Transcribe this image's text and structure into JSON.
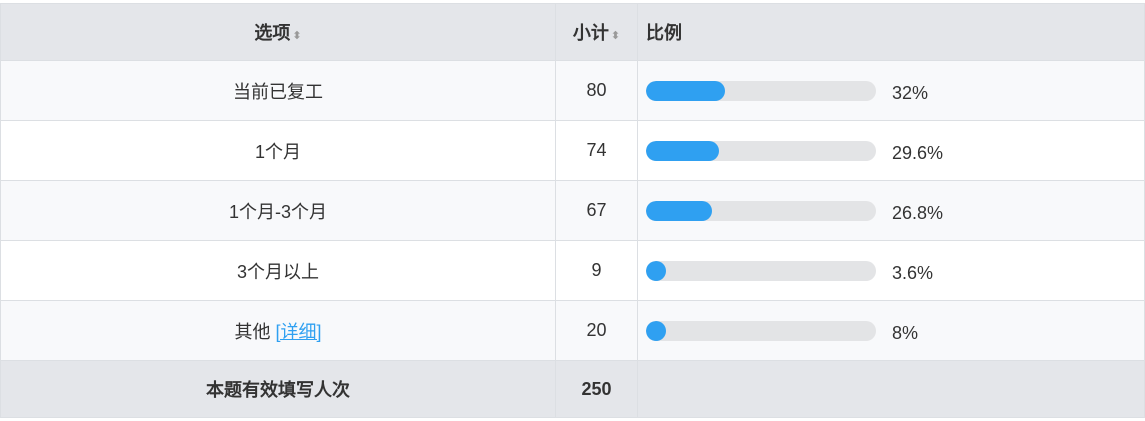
{
  "header": {
    "option": "选项",
    "count": "小计",
    "ratio": "比例"
  },
  "rows": [
    {
      "label": "当前已复工",
      "count": "80",
      "percent": "32%",
      "value": 32
    },
    {
      "label": "1个月",
      "count": "74",
      "percent": "29.6%",
      "value": 29.6
    },
    {
      "label": "1个月-3个月",
      "count": "67",
      "percent": "26.8%",
      "value": 26.8
    },
    {
      "label": "3个月以上",
      "count": "9",
      "percent": "3.6%",
      "value": 3.6
    },
    {
      "label": "其他",
      "link": "[详细]",
      "count": "20",
      "percent": "8%",
      "value": 8
    }
  ],
  "footer": {
    "label": "本题有效填写人次",
    "total": "250"
  },
  "colors": {
    "bar": "#2fa0f1",
    "track": "#e3e4e6",
    "link": "#2fa0f1"
  }
}
